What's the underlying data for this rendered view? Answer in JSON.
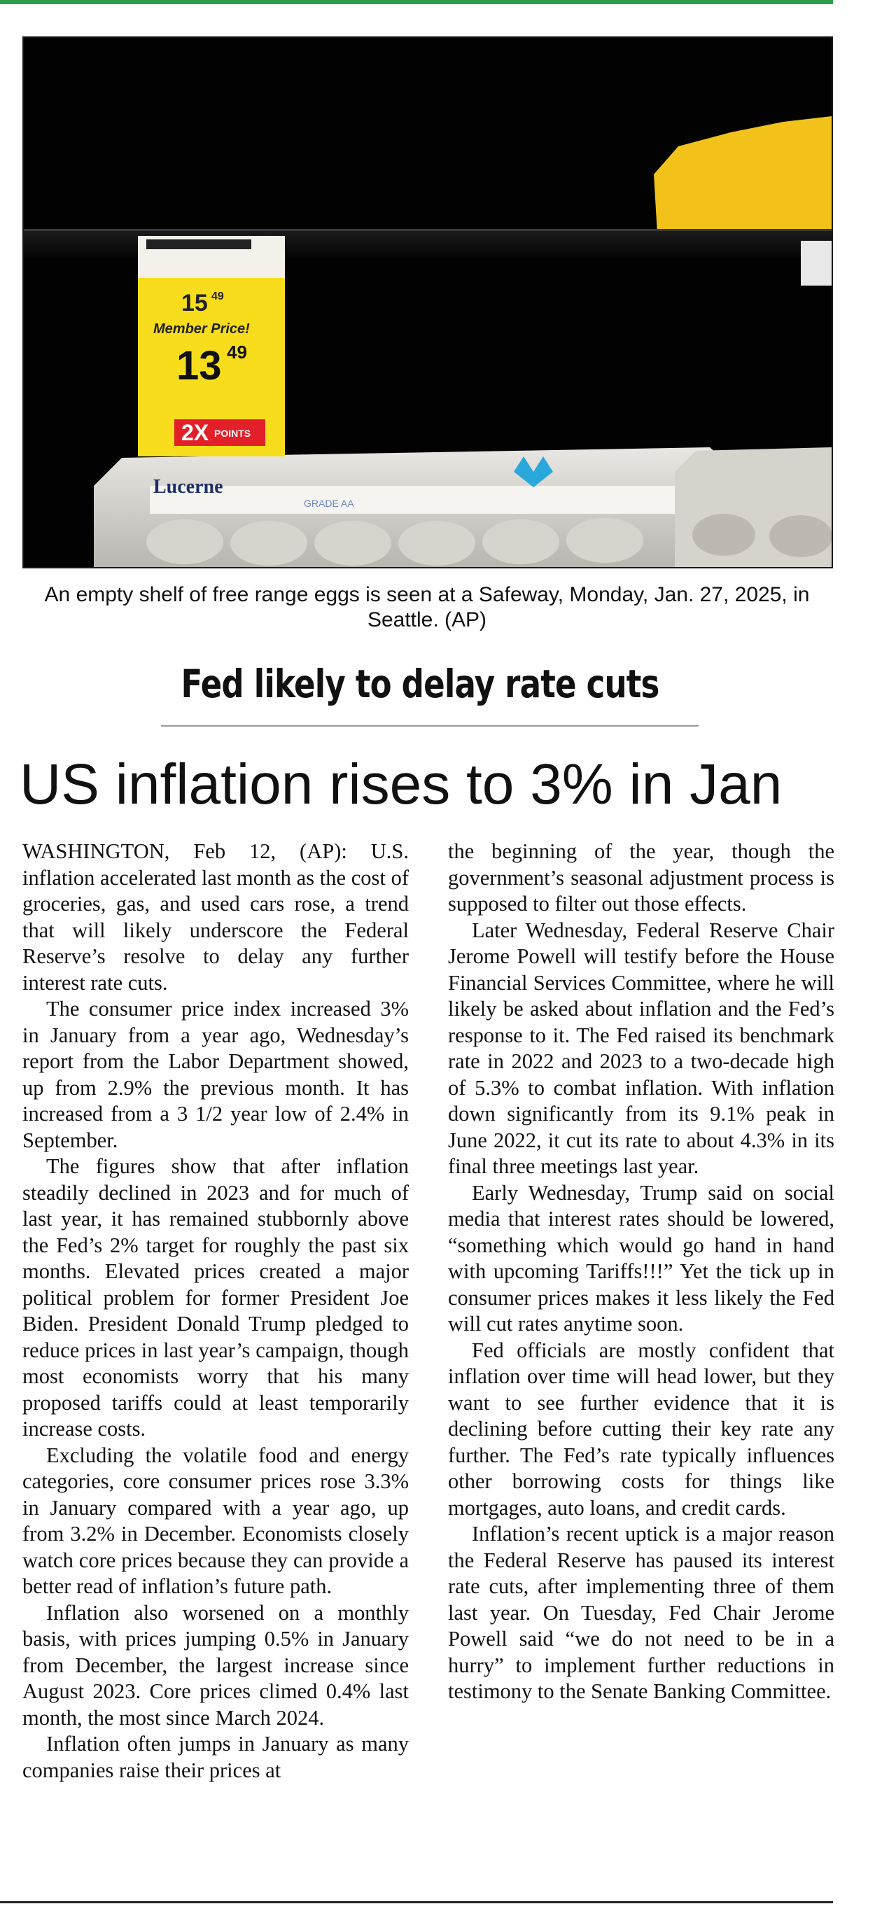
{
  "photo": {
    "price_tag": {
      "regular_price": "15",
      "regular_price_cents": "49",
      "member_label": "Member Price!",
      "member_price": "13",
      "member_price_cents": "49",
      "points": "2X",
      "points_label": "POINTS"
    },
    "carton_brand": "Lucerne",
    "carton_text": "GRADE AA"
  },
  "caption": "An empty shelf of free range eggs is seen at a Safeway, Monday, Jan. 27, 2025, in Seattle. (AP)",
  "kicker": "Fed likely to delay rate cuts",
  "headline": "US inflation rises to 3% in Jan",
  "columns": [
    {
      "paragraphs": [
        "WASHINGTON, Feb 12, (AP): U.S. inflation accelerated last month as the cost of groceries, gas, and used cars rose, a trend that will likely underscore the Federal Reserve’s resolve to delay any further interest rate cuts.",
        "The consumer price index increased 3% in January from a year ago, Wednesday’s report from the Labor Department showed, up from 2.9% the previous month. It has increased from a 3 1/2 year low of 2.4% in September.",
        "The figures show that after inflation steadily declined in 2023 and for much of last year, it has remained stubbornly above the Fed’s 2% target for roughly the past six months. Elevated prices created a major political problem for former President Joe Biden. President Donald Trump pledged to reduce prices in last year’s campaign, though most economists worry that his many proposed tariffs could at least temporarily increase costs.",
        "Excluding the volatile food and energy categories, core consumer prices rose 3.3% in January compared with a year ago, up from 3.2% in December. Economists closely watch core prices because they can provide a better read of inflation’s future path.",
        "Inflation also worsened on a monthly basis, with prices jumping 0.5% in January from December, the largest increase since August 2023. Core prices climed 0.4% last month, the most since March 2024.",
        "Inflation often jumps in January as many companies raise their prices at"
      ]
    },
    {
      "paragraphs": [
        "the beginning of the year, though the government’s seasonal adjustment process is supposed to filter out those effects.",
        "Later Wednesday, Federal Reserve Chair Jerome Powell will testify before the House Financial Services Committee, where he will likely be asked about inflation and the Fed’s response to it. The Fed raised its benchmark rate in 2022 and 2023 to a two-decade high of 5.3% to combat inflation. With inflation down significantly from its 9.1% peak in June 2022, it cut its rate to about 4.3% in its final three meetings last year.",
        "Early Wednesday, Trump said on social media that interest rates should be lowered, “something which would go hand in hand with upcoming Tariffs!!!” Yet the tick up in consumer prices makes it less likely the Fed will cut rates anytime soon.",
        "Fed officials are mostly confident that inflation over time will head lower, but they want to see further evidence that it is declining before cutting their key rate any further. The Fed’s rate typically influences other borrowing costs for things like mortgages, auto loans, and credit cards.",
        "Inflation’s recent uptick is a major reason the Federal Reserve has paused its interest rate cuts, after implementing three of them last year. On Tuesday, Fed Chair Jerome Powell said “we do not need to be in a hurry” to implement further reductions in testimony to the Senate Banking Committee."
      ]
    }
  ],
  "colors": {
    "accent_rule": "#2e9e4a",
    "tag_yellow": "#f7dd1c",
    "tag_red": "#e3202a"
  }
}
